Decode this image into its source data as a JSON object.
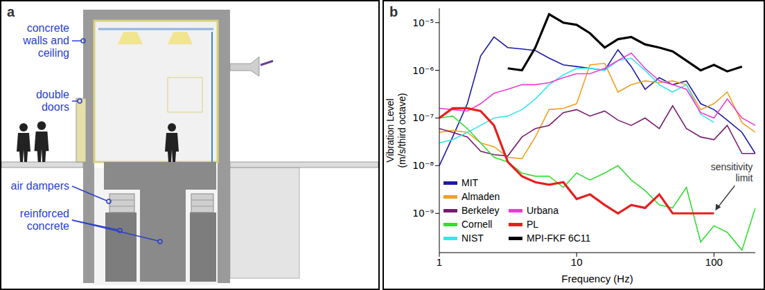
{
  "diagram": {
    "letter": "a",
    "labels": {
      "walls": "concrete walls and ceiling",
      "doors": "double doors",
      "dampers": "air dampers",
      "concrete": "reinforced concrete"
    }
  },
  "chart_data": {
    "letter": "b",
    "type": "line",
    "x_label": "Frequency (Hz)",
    "y_label": "Vibration Level (m/s/third octave)",
    "log": true,
    "legend": "lower left",
    "x": [
      1,
      1.25,
      1.6,
      2,
      2.5,
      3.15,
      4,
      5,
      6.3,
      8,
      10,
      12.5,
      16,
      20,
      25,
      31.5,
      40,
      50,
      63,
      80,
      100,
      125,
      160,
      200
    ],
    "xlim": [
      1,
      200
    ],
    "xticks": [
      1,
      10,
      100
    ],
    "ylim": [
      1.5e-10,
      2e-05
    ],
    "yticks": [
      {
        "value": 1e-09,
        "label": "10⁻⁹"
      },
      {
        "value": 1e-08,
        "label": "10⁻⁸"
      },
      {
        "value": 1e-07,
        "label": "10⁻⁷"
      },
      {
        "value": 1e-06,
        "label": "10⁻⁶"
      },
      {
        "value": 1e-05,
        "label": "10⁻⁵"
      }
    ],
    "series": [
      {
        "name": "MIT",
        "color": "#1a1aa8",
        "values": [
          1e-08,
          4e-08,
          2e-07,
          2e-06,
          5e-06,
          3e-06,
          2.8e-06,
          2.6e-06,
          1.8e-06,
          1.3e-06,
          1.2e-06,
          1.1e-06,
          1e-06,
          2.7e-06,
          1.2e-06,
          4e-07,
          7e-07,
          5e-07,
          6e-07,
          2e-07,
          1.5e-07,
          9e-08,
          5e-08,
          1.8e-08
        ]
      },
      {
        "name": "Almaden",
        "color": "#f0a020",
        "values": [
          5e-08,
          5.5e-08,
          5e-08,
          3e-08,
          2.5e-08,
          1.5e-08,
          1.4e-08,
          4e-08,
          1.5e-07,
          1.6e-07,
          2e-07,
          1.3e-06,
          1.4e-06,
          3.5e-07,
          5e-07,
          6e-07,
          5.5e-07,
          6e-07,
          5e-07,
          1.5e-07,
          2e-07,
          3.5e-07,
          8e-08,
          5e-08
        ]
      },
      {
        "name": "Berkeley",
        "color": "#7a1a6e",
        "values": [
          6e-08,
          5e-08,
          4e-08,
          2e-08,
          1.7e-08,
          1.6e-08,
          4e-08,
          6e-08,
          7e-08,
          1.3e-07,
          1.5e-07,
          1.1e-07,
          1.4e-07,
          9e-08,
          7e-08,
          1e-07,
          6e-08,
          1.8e-07,
          6e-08,
          4e-08,
          3.5e-08,
          7e-08,
          1.8e-08,
          1.8e-08
        ]
      },
      {
        "name": "Cornell",
        "color": "#33dd33",
        "values": [
          1e-07,
          1.1e-07,
          6e-08,
          3e-08,
          1.5e-08,
          1.2e-08,
          7e-09,
          6e-09,
          6e-09,
          3.5e-09,
          7e-09,
          5e-09,
          7e-09,
          1e-08,
          5e-09,
          3e-09,
          1.5e-09,
          1.3e-09,
          3.5e-09,
          2.5e-10,
          5.5e-10,
          4e-10,
          1.7e-10,
          1.3e-09
        ]
      },
      {
        "name": "NIST",
        "color": "#33e6ee",
        "values": [
          3e-08,
          3.5e-08,
          5e-08,
          7e-08,
          1e-07,
          1.1e-07,
          1.5e-07,
          2.5e-07,
          5e-07,
          8e-07,
          1.1e-06,
          1.1e-06,
          1e-06,
          1.6e-06,
          1.8e-06,
          1e-06,
          5e-07,
          3.5e-07,
          5e-07,
          1.2e-07,
          8e-08,
          null,
          null,
          null
        ]
      },
      {
        "name": "Urbana",
        "color": "#ee3ad8",
        "values": [
          1.6e-07,
          1.5e-07,
          1.4e-07,
          2e-07,
          3.3e-07,
          4e-07,
          5e-07,
          5e-07,
          5.5e-07,
          7e-07,
          8.5e-07,
          8.5e-07,
          1.1e-06,
          1.6e-06,
          2.3e-06,
          1.1e-06,
          6e-07,
          5e-07,
          4e-07,
          1.3e-07,
          1e-07,
          2.5e-07,
          1e-07,
          7e-08
        ]
      },
      {
        "name": "PL",
        "color": "#e81e1e",
        "line_style": "bold",
        "values": [
          1e-07,
          1.6e-07,
          1.6e-07,
          1.4e-07,
          7e-08,
          1.2e-08,
          6e-09,
          4.5e-09,
          4e-09,
          4.5e-09,
          2e-09,
          2.5e-09,
          1.5e-09,
          1e-09,
          1.5e-09,
          1.3e-09,
          2.5e-09,
          1e-09,
          1e-09,
          1e-09,
          1e-09,
          null,
          null,
          null
        ]
      },
      {
        "name": "MPI-FKF 6C11",
        "color": "#000000",
        "line_style": "bold",
        "values": [
          null,
          null,
          null,
          null,
          null,
          1.1e-06,
          1e-06,
          3e-06,
          1.5e-05,
          1e-05,
          9e-06,
          6e-06,
          3e-06,
          4.5e-06,
          5e-06,
          3.5e-06,
          3e-06,
          2.5e-06,
          1.6e-06,
          1e-06,
          1.3e-06,
          9.5e-07,
          1.2e-06,
          null
        ]
      }
    ],
    "annotations": [
      {
        "text": "sensitivity limit",
        "x": 100,
        "y": 1e-09
      }
    ]
  }
}
